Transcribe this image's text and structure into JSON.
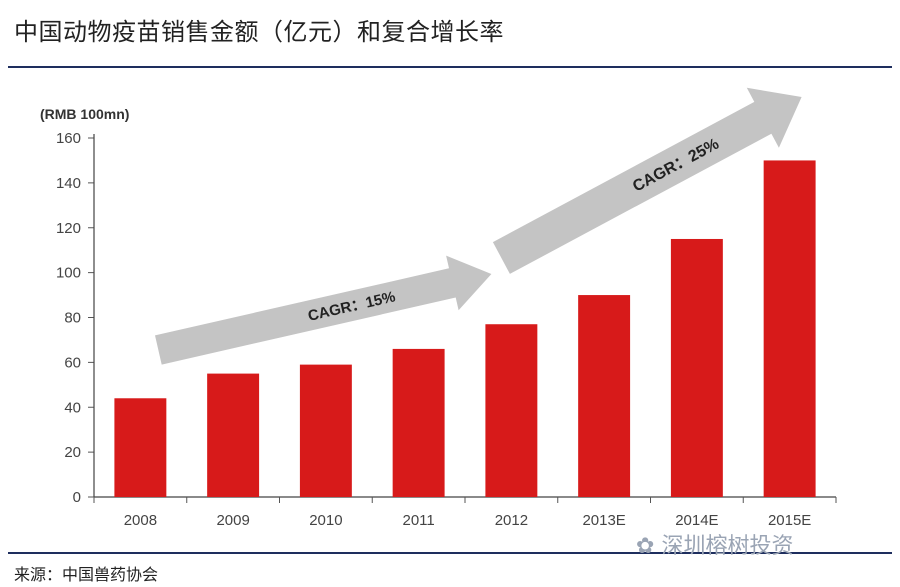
{
  "header": {
    "title": "中国动物疫苗销售金额（亿元）和复合增长率"
  },
  "chart_data": {
    "type": "bar",
    "unit_label": "(RMB 100mn)",
    "categories": [
      "2008",
      "2009",
      "2010",
      "2011",
      "2012",
      "2013E",
      "2014E",
      "2015E"
    ],
    "values": [
      44,
      55,
      59,
      66,
      77,
      90,
      115,
      150
    ],
    "yticks": [
      0,
      20,
      40,
      60,
      80,
      100,
      120,
      140,
      160
    ],
    "ylim": [
      0,
      160
    ],
    "bar_color": "#d71a1a",
    "arrow_color": "#c4c4c4",
    "annotations": [
      {
        "text": "CAGR：15%",
        "from_category": "2008",
        "to_category": "2012"
      },
      {
        "text": "CAGR：25%",
        "from_category": "2012",
        "to_category": "2015E"
      }
    ]
  },
  "footer": {
    "source": "来源：中国兽药协会",
    "watermark": "深圳榕树投资"
  },
  "colors": {
    "rule": "#1e2e5e",
    "axis": "#333333"
  }
}
